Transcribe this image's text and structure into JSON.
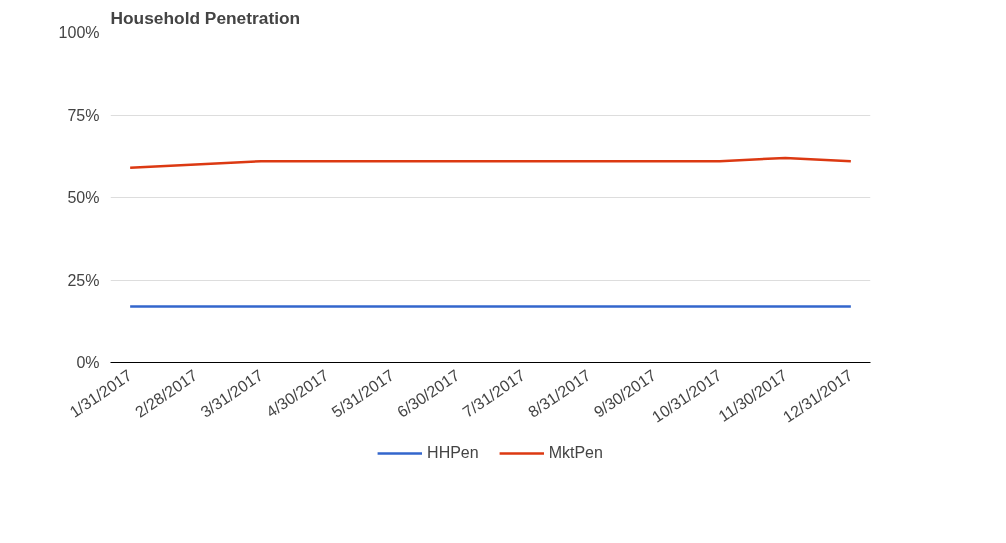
{
  "chart_data": {
    "type": "line",
    "title": "Household Penetration",
    "categories": [
      "1/31/2017",
      "2/28/2017",
      "3/31/2017",
      "4/30/2017",
      "5/31/2017",
      "6/30/2017",
      "7/31/2017",
      "8/31/2017",
      "9/30/2017",
      "10/31/2017",
      "11/30/2017",
      "12/31/2017"
    ],
    "series": [
      {
        "name": "HHPen",
        "color": "#3366cc",
        "values": [
          17,
          17,
          17,
          17,
          17,
          17,
          17,
          17,
          17,
          17,
          17,
          17
        ]
      },
      {
        "name": "MktPen",
        "color": "#dc3912",
        "values": [
          59,
          60,
          61,
          61,
          61,
          61,
          61,
          61,
          61,
          61,
          62,
          61
        ]
      }
    ],
    "ylim": [
      0,
      100
    ],
    "yticks": [
      {
        "value": 0,
        "label": "0%"
      },
      {
        "value": 25,
        "label": "25%"
      },
      {
        "value": 50,
        "label": "50%"
      },
      {
        "value": 75,
        "label": "75%"
      },
      {
        "value": 100,
        "label": "100%"
      }
    ],
    "grid": "y",
    "legend": "bottom",
    "marker": "none",
    "line_style": "solid"
  }
}
